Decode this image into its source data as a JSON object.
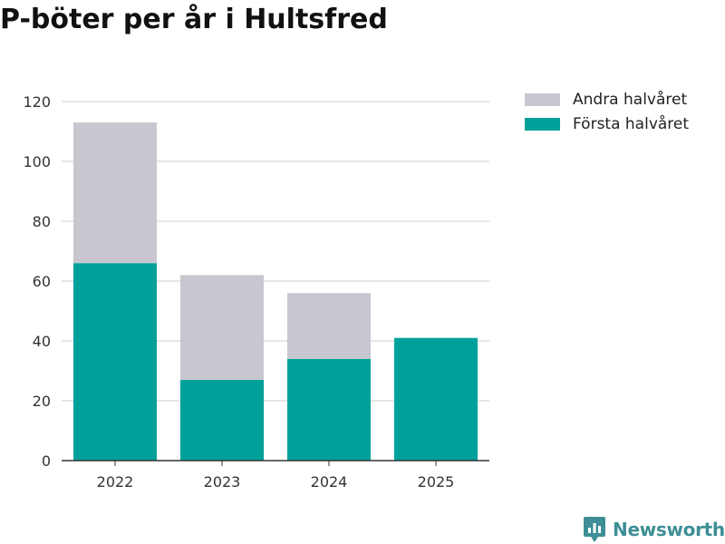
{
  "colors": {
    "forsta": "#00a19a",
    "andra": "#c8c7cf",
    "grid": "#dedede",
    "axis": "#333333",
    "brand": "#3e8e95"
  },
  "brand": {
    "name": "Newsworthy"
  },
  "chart_data": {
    "type": "bar",
    "stacked": true,
    "title": "P-böter per år i Hultsfred",
    "xlabel": "",
    "ylabel": "",
    "categories": [
      "2022",
      "2023",
      "2024",
      "2025"
    ],
    "series": [
      {
        "name": "Första halvåret",
        "values": [
          66,
          27,
          34,
          41
        ]
      },
      {
        "name": "Andra halvåret",
        "values": [
          47,
          35,
          22,
          0
        ]
      }
    ],
    "ylim": [
      0,
      120
    ],
    "yticks": [
      0,
      20,
      40,
      60,
      80,
      100,
      120
    ],
    "grid": true,
    "legend": {
      "position": "top-right",
      "entries": [
        "Andra halvåret",
        "Första halvåret"
      ]
    }
  }
}
